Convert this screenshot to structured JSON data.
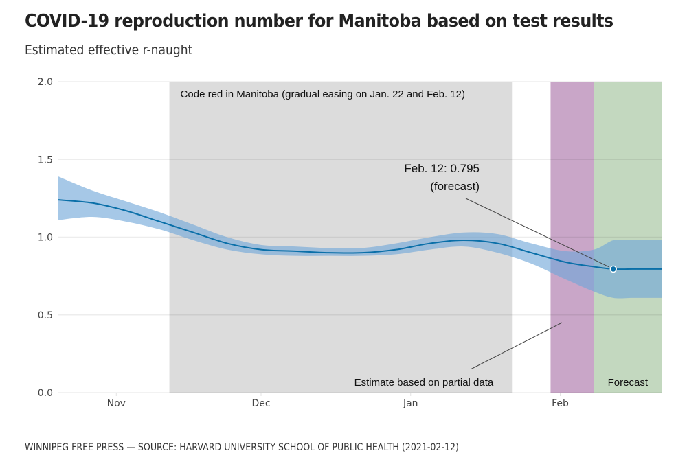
{
  "header": {
    "title": "COVID-19 reproduction number for Manitoba based on test results",
    "subtitle": "Estimated effective r-naught"
  },
  "footer": {
    "source": "WINNIPEG FREE PRESS — SOURCE: HARVARD UNIVERSITY SCHOOL OF PUBLIC HEALTH (2021-02-12)"
  },
  "colors": {
    "line": "#0a6fa8",
    "band": "#6fa6d8",
    "code_red_shade": "#dcdcdc",
    "partial_shade": "#c9a6c8",
    "forecast_shade": "#c3d8bf",
    "gridline": "#e8e8e8"
  },
  "chart_data": {
    "type": "line",
    "title": "COVID-19 reproduction number for Manitoba based on test results",
    "subtitle": "Estimated effective r-naught",
    "xlabel": "",
    "ylabel": "",
    "x_type": "date",
    "xlim": [
      "2020-10-20",
      "2021-02-22"
    ],
    "ylim": [
      0,
      2.0
    ],
    "grid": true,
    "y_ticks": [
      {
        "value": 0.0,
        "label": "0.0"
      },
      {
        "value": 0.5,
        "label": "0.5"
      },
      {
        "value": 1.0,
        "label": "1.0"
      },
      {
        "value": 1.5,
        "label": "1.5"
      },
      {
        "value": 2.0,
        "label": "2.0"
      }
    ],
    "x_ticks": [
      {
        "value": "2020-11-01",
        "label": "Nov"
      },
      {
        "value": "2020-12-01",
        "label": "Dec"
      },
      {
        "value": "2021-01-01",
        "label": "Jan"
      },
      {
        "value": "2021-02-01",
        "label": "Feb"
      }
    ],
    "series": [
      {
        "name": "Effective r-naught",
        "x": [
          "2020-10-20",
          "2020-10-27",
          "2020-11-03",
          "2020-11-10",
          "2020-11-17",
          "2020-11-24",
          "2020-12-01",
          "2020-12-08",
          "2020-12-15",
          "2020-12-22",
          "2020-12-29",
          "2021-01-05",
          "2021-01-12",
          "2021-01-19",
          "2021-01-26",
          "2021-02-02",
          "2021-02-08",
          "2021-02-12",
          "2021-02-16",
          "2021-02-22"
        ],
        "values": [
          1.24,
          1.22,
          1.17,
          1.1,
          1.03,
          0.96,
          0.92,
          0.91,
          0.9,
          0.9,
          0.92,
          0.96,
          0.98,
          0.96,
          0.9,
          0.84,
          0.81,
          0.795,
          0.795,
          0.795
        ],
        "lower": [
          1.11,
          1.13,
          1.1,
          1.05,
          0.98,
          0.92,
          0.89,
          0.88,
          0.88,
          0.88,
          0.89,
          0.92,
          0.94,
          0.9,
          0.83,
          0.73,
          0.65,
          0.61,
          0.61,
          0.61
        ],
        "upper": [
          1.39,
          1.3,
          1.23,
          1.16,
          1.08,
          1.0,
          0.95,
          0.94,
          0.93,
          0.93,
          0.96,
          1.0,
          1.03,
          1.02,
          0.96,
          0.91,
          0.92,
          0.98,
          0.98,
          0.98
        ]
      }
    ],
    "shaded_regions": [
      {
        "name": "code-red",
        "start": "2020-11-12",
        "end": "2021-01-22",
        "label": "Code red in Manitoba (gradual easing on Jan. 22 and Feb. 12)"
      },
      {
        "name": "partial-data",
        "start": "2021-01-30",
        "end": "2021-02-08",
        "label": "Estimate based on partial data"
      },
      {
        "name": "forecast",
        "start": "2021-02-08",
        "end": "2021-02-22",
        "label": "Forecast"
      }
    ],
    "highlight_point": {
      "x": "2021-02-12",
      "y": 0.795,
      "label_line1": "Feb. 12: 0.795",
      "label_line2": "(forecast)"
    }
  }
}
